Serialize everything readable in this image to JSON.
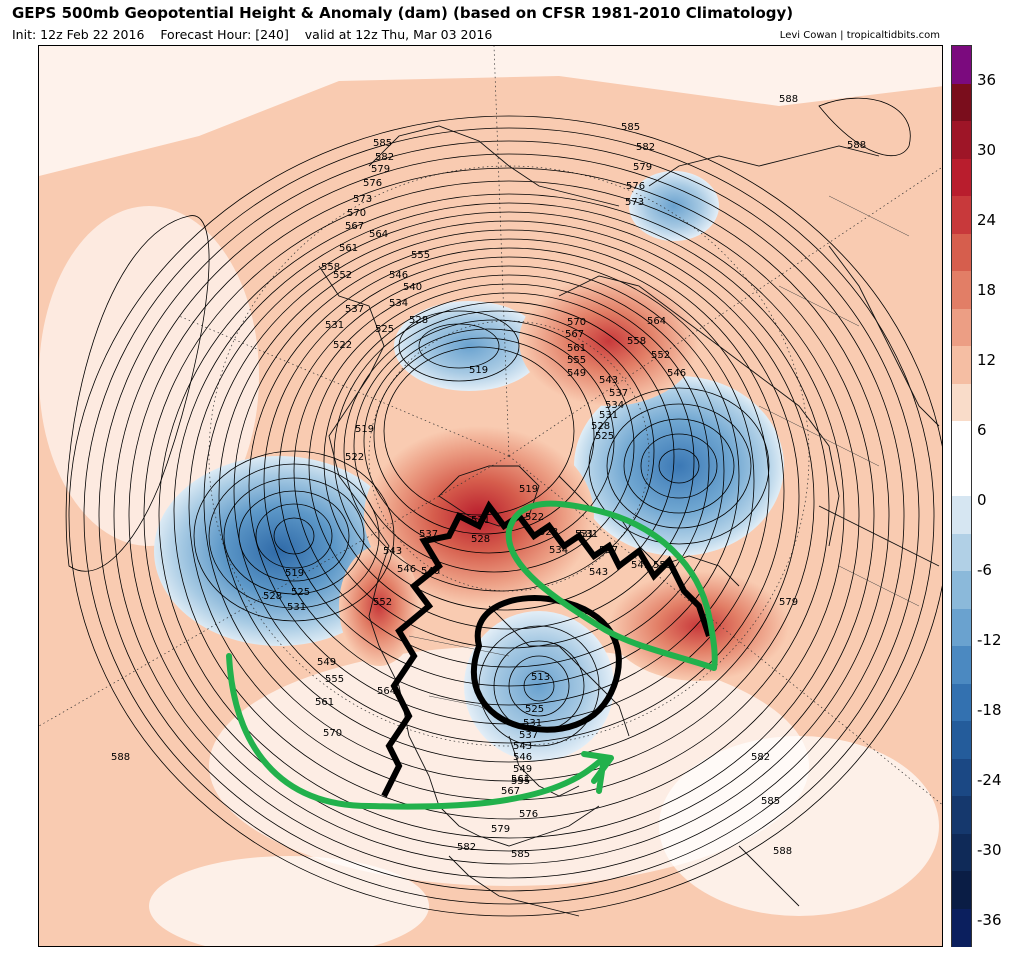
{
  "header": {
    "title": "GEPS 500mb Geopotential Height & Anomaly (dam) (based on CFSR 1981-2010 Climatology)",
    "init": "Init: 12z Feb 22 2016",
    "forecast_hour": "Forecast Hour: [240]",
    "valid": "valid at 12z Thu, Mar 03 2016",
    "credit": "Levi Cowan | tropicaltidbits.com"
  },
  "colorbar": {
    "labels": [
      "36",
      "30",
      "24",
      "18",
      "12",
      "6",
      "0",
      "-6",
      "-12",
      "-18",
      "-24",
      "-30",
      "-36"
    ],
    "colors": [
      "#7b0a7e",
      "#7a0d1c",
      "#9e1527",
      "#b91d2d",
      "#c8393b",
      "#d65e4d",
      "#e27e66",
      "#ec9e84",
      "#f5bea3",
      "#f9dcc9",
      "#ffffff",
      "#ffffff",
      "#d6e6f2",
      "#b1d0e6",
      "#8bb9da",
      "#6aa2cf",
      "#4b89c1",
      "#3371b0",
      "#245c9b",
      "#1b4884",
      "#15386d",
      "#0f2a58",
      "#0a1d45",
      "#0b1f5e"
    ]
  },
  "map": {
    "contour_labels": [
      "588",
      "588",
      "585",
      "582",
      "579",
      "576",
      "573",
      "585",
      "582",
      "579",
      "576",
      "573",
      "570",
      "567",
      "564",
      "561",
      "558",
      "555",
      "552",
      "546",
      "540",
      "537",
      "534",
      "531",
      "528",
      "525",
      "522",
      "519",
      "570",
      "567",
      "561",
      "555",
      "549",
      "564",
      "558",
      "552",
      "546",
      "543",
      "537",
      "534",
      "531",
      "528",
      "525",
      "519",
      "522",
      "519",
      "537",
      "531",
      "528",
      "522",
      "543",
      "546",
      "540",
      "552",
      "531",
      "528",
      "534",
      "531",
      "537",
      "543",
      "549",
      "555",
      "579",
      "519",
      "528",
      "525",
      "531",
      "549",
      "555",
      "561",
      "570",
      "564",
      "513",
      "525",
      "531",
      "537",
      "543",
      "546",
      "549",
      "555",
      "561",
      "567",
      "576",
      "579",
      "582",
      "585",
      "582",
      "585",
      "588",
      "588"
    ]
  }
}
